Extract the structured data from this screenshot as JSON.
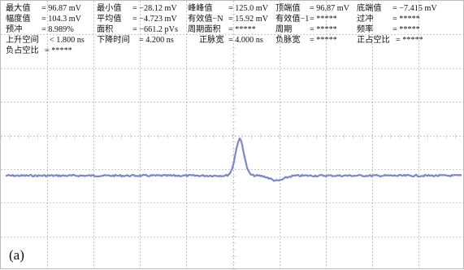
{
  "measurements": {
    "rows": [
      [
        {
          "label": "最大值",
          "value": "= 96.87 mV"
        },
        {
          "label": "最小值",
          "value": "= −28.12 mV"
        },
        {
          "label": "峰峰值",
          "value": "= 125.0 mV"
        },
        {
          "label": "顶端值",
          "value": "= 96.87 mV"
        },
        {
          "label": "底端值",
          "value": "= −7.415 mV"
        }
      ],
      [
        {
          "label": "幅度值",
          "value": "= 104.3 mV"
        },
        {
          "label": "平均值",
          "value": "= −4.723 mV"
        },
        {
          "label": "有效值−N",
          "value": "= 15.92 mV"
        },
        {
          "label": "有效值−1",
          "value": "= *****"
        },
        {
          "label": "过冲",
          "value": "= *****"
        }
      ],
      [
        {
          "label": "预冲",
          "value": "= 8.989%"
        },
        {
          "label": "面积",
          "value": "= −661.2 pVs"
        },
        {
          "label": "周期面积",
          "value": "= *****"
        },
        {
          "label": "周期",
          "value": "= *****"
        },
        {
          "label": "频率",
          "value": "= *****"
        }
      ],
      [
        {
          "label": "上升空间",
          "value": "< 1.800 ns"
        },
        {
          "label": "下降时间",
          "value": "= 4.200 ns"
        },
        {
          "label": "正脉宽",
          "value": "= 4.000 ns"
        },
        {
          "label": "负脉宽",
          "value": "= *****"
        },
        {
          "label": "正占空比",
          "value": "= *****"
        }
      ],
      [
        {
          "label": "负占空比",
          "value": "= *****"
        }
      ]
    ]
  },
  "panel_label": "(a)",
  "colors": {
    "trace": "#7c86c8",
    "grid_major": "#b9b9b9",
    "grid_minor": "#d2d2d2"
  },
  "grid": {
    "divisions_x": 10,
    "divisions_y": 8
  },
  "waveform": {
    "baseline_mv": -7.4,
    "peak_mv": 96.9,
    "undershoot_mv": -28.1,
    "volts_per_div_mv": 50,
    "pulse_width_ns": 4.0,
    "rise_time_ns": 1.8,
    "fall_time_ns": 4.2
  }
}
